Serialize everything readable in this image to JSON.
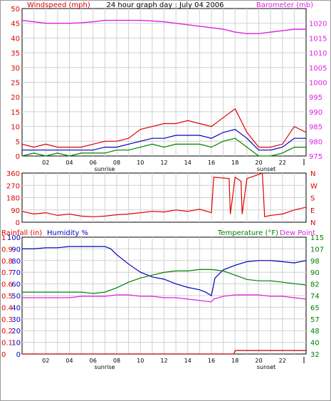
{
  "title": "24 hour graph day : July 04 2006",
  "colors": {
    "wind": "#e00000",
    "gust_series_dark": "#0000c0",
    "green": "#008000",
    "magenta": "#e020e0",
    "blue": "#0000c0",
    "grid": "#d0d0d0",
    "frame": "#000000"
  },
  "hours": [
    "02",
    "04",
    "06",
    "08",
    "10",
    "12",
    "14",
    "16",
    "18",
    "20",
    "22"
  ],
  "sun_labels": {
    "sunrise": "sunrise",
    "sunset": "sunset"
  },
  "chart_data": [
    {
      "type": "line",
      "panel": "wind_barometer",
      "left_axis_label": "Windspeed (mph)",
      "right_axis_label": "Barometer (mb)",
      "left_ticks": [
        "0",
        "5",
        "10",
        "15",
        "20",
        "25",
        "30",
        "35",
        "40",
        "45",
        "50"
      ],
      "right_ticks": [
        "975",
        "980",
        "985",
        "990",
        "995",
        "1000",
        "1005",
        "1010",
        "1015",
        "1020"
      ],
      "left_range": [
        0,
        50
      ],
      "right_range": [
        975,
        1025
      ],
      "x_range": [
        0,
        24
      ],
      "series": [
        {
          "key": "barometer",
          "axis": "right",
          "color": "#e020e0",
          "x": [
            0,
            1,
            2,
            3,
            4,
            5,
            6,
            7,
            8,
            9,
            10,
            11,
            12,
            13,
            14,
            15,
            16,
            17,
            18,
            19,
            20,
            21,
            22,
            23,
            24
          ],
          "y": [
            1021,
            1020.5,
            1020,
            1020,
            1020,
            1020.2,
            1020.5,
            1021,
            1021,
            1021,
            1021,
            1020.8,
            1020.5,
            1020,
            1019.5,
            1019,
            1018.5,
            1018,
            1017,
            1016.5,
            1016.5,
            1017,
            1017.5,
            1018,
            1018
          ]
        },
        {
          "key": "gust",
          "axis": "left",
          "color": "#e00000",
          "x": [
            0,
            1,
            2,
            3,
            4,
            5,
            6,
            7,
            8,
            9,
            10,
            11,
            12,
            13,
            14,
            15,
            16,
            17,
            18,
            19,
            20,
            21,
            22,
            23,
            24
          ],
          "y": [
            4,
            3,
            4,
            3,
            3,
            3,
            4,
            5,
            5,
            6,
            9,
            10,
            11,
            11,
            12,
            11,
            10,
            13,
            16,
            8,
            3,
            3,
            4,
            10,
            8
          ]
        },
        {
          "key": "wind_avg",
          "axis": "left",
          "color": "#0000c0",
          "x": [
            0,
            1,
            2,
            3,
            4,
            5,
            6,
            7,
            8,
            9,
            10,
            11,
            12,
            13,
            14,
            15,
            16,
            17,
            18,
            19,
            20,
            21,
            22,
            23,
            24
          ],
          "y": [
            2,
            2,
            2,
            2,
            2,
            2,
            2,
            3,
            3,
            4,
            5,
            6,
            6,
            7,
            7,
            7,
            6,
            8,
            9,
            6,
            2,
            2,
            3,
            6,
            6
          ]
        },
        {
          "key": "wind_low",
          "axis": "left",
          "color": "#008000",
          "x": [
            0,
            1,
            2,
            3,
            4,
            5,
            6,
            7,
            8,
            9,
            10,
            11,
            12,
            13,
            14,
            15,
            16,
            17,
            18,
            19,
            20,
            21,
            22,
            23,
            24
          ],
          "y": [
            0,
            1,
            0,
            1,
            0,
            1,
            1,
            1,
            2,
            2,
            3,
            4,
            3,
            4,
            4,
            4,
            3,
            5,
            6,
            3,
            0,
            0,
            1,
            3,
            3
          ]
        }
      ]
    },
    {
      "type": "line",
      "panel": "wind_direction",
      "left_ticks": [
        "0",
        "90",
        "180",
        "270",
        "360"
      ],
      "right_ticks": [
        "N",
        "W",
        "S",
        "E",
        "N"
      ],
      "left_range": [
        0,
        360
      ],
      "x_range": [
        0,
        24
      ],
      "series": [
        {
          "key": "direction",
          "axis": "left",
          "color": "#e00000",
          "x": [
            0,
            1,
            2,
            3,
            4,
            5,
            6,
            7,
            8,
            9,
            10,
            11,
            12,
            13,
            14,
            15,
            16,
            16.2,
            17.5,
            17.6,
            18,
            18.5,
            18.6,
            19,
            20,
            20.3,
            20.5,
            21,
            22,
            23,
            24
          ],
          "y": [
            80,
            60,
            70,
            50,
            60,
            45,
            40,
            45,
            55,
            60,
            70,
            80,
            75,
            90,
            80,
            95,
            70,
            330,
            320,
            60,
            330,
            300,
            60,
            320,
            350,
            360,
            40,
            50,
            60,
            90,
            110
          ]
        }
      ]
    },
    {
      "type": "line",
      "panel": "rain_humidity_temp",
      "left_axis_label": "Rainfall (in)",
      "left_axis_label2": "Humidity %",
      "right_axis_label": "Temperature (°F)",
      "right_axis_label2": "Dew Point",
      "rain_ticks": [
        "0",
        "0.1",
        "0.2",
        "0.3",
        "0.4",
        "0.5",
        "0.6",
        "0.7",
        "0.8",
        "0.9",
        "1"
      ],
      "humidity_ticks": [
        "0",
        "10",
        "20",
        "30",
        "40",
        "50",
        "60",
        "70",
        "80",
        "90",
        "100"
      ],
      "temp_ticks": [
        "32",
        "40",
        "48",
        "57",
        "65",
        "74",
        "82",
        "90",
        "98",
        "107",
        "115"
      ],
      "rain_range": [
        0,
        1
      ],
      "humidity_range": [
        0,
        100
      ],
      "temp_range": [
        32,
        115
      ],
      "x_range": [
        0,
        24
      ],
      "series": [
        {
          "key": "humidity",
          "axis": "humidity",
          "color": "#0000c0",
          "x": [
            0,
            1,
            2,
            3,
            4,
            5,
            6,
            7,
            7.5,
            8,
            9,
            10,
            11,
            12,
            13,
            14,
            15,
            15.5,
            16,
            16.3,
            17,
            18,
            19,
            20,
            21,
            22,
            23,
            24
          ],
          "y": [
            90,
            90,
            91,
            91,
            92,
            92,
            92,
            92,
            90,
            85,
            77,
            70,
            66,
            64,
            60,
            57,
            55,
            53,
            50,
            65,
            72,
            76,
            79,
            80,
            80,
            79,
            78,
            80
          ]
        },
        {
          "key": "temperature",
          "axis": "temp",
          "color": "#008000",
          "x": [
            0,
            1,
            2,
            3,
            4,
            5,
            6,
            7,
            8,
            9,
            10,
            11,
            12,
            13,
            14,
            15,
            16,
            17,
            18,
            19,
            20,
            21,
            22,
            23,
            24
          ],
          "y": [
            76,
            76,
            76,
            76,
            76,
            76,
            75,
            76,
            79,
            83,
            86,
            88,
            90,
            91,
            91,
            92,
            92,
            91,
            88,
            85,
            84,
            84,
            83,
            82,
            81
          ]
        },
        {
          "key": "dew_point",
          "axis": "temp",
          "color": "#e020e0",
          "x": [
            0,
            1,
            2,
            3,
            4,
            5,
            6,
            7,
            8,
            9,
            10,
            11,
            12,
            13,
            14,
            15,
            16,
            16.2,
            17,
            18,
            19,
            20,
            21,
            22,
            23,
            24
          ],
          "y": [
            72,
            72,
            72,
            72,
            72,
            73,
            73,
            73,
            74,
            74,
            73,
            73,
            72,
            72,
            71,
            70,
            69,
            71,
            73,
            74,
            74,
            74,
            73,
            73,
            72,
            71
          ]
        },
        {
          "key": "rainfall",
          "axis": "rain",
          "color": "#b00000",
          "x": [
            0,
            17.9,
            18,
            24
          ],
          "y": [
            0,
            0,
            0.03,
            0.03
          ]
        }
      ]
    }
  ]
}
